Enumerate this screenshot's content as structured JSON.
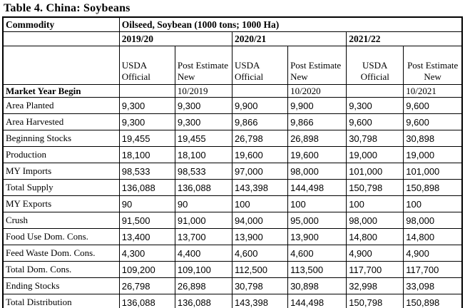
{
  "title": "Table 4. China:  Soybeans",
  "table": {
    "commodity_label": "Commodity",
    "commodity_value": "Oilseed, Soybean (1000 tons; 1000 Ha)",
    "subheader_usda": "USDA Official",
    "subheader_post": "Post Estimate New",
    "market_year_begin_label": "Market Year Begin",
    "year_groups": [
      {
        "year": "2019/20",
        "market_year_begin": "10/2019"
      },
      {
        "year": "2020/21",
        "market_year_begin": "10/2020"
      },
      {
        "year": "2021/22",
        "market_year_begin": "10/2021"
      }
    ],
    "rows": [
      {
        "label": "Area Planted",
        "values": [
          "9,300",
          "9,300",
          "9,900",
          "9,900",
          "9,300",
          "9,600"
        ]
      },
      {
        "label": "Area Harvested",
        "values": [
          "9,300",
          "9,300",
          "9,866",
          "9,866",
          "9,600",
          "9,600"
        ]
      },
      {
        "label": "Beginning Stocks",
        "values": [
          "19,455",
          "19,455",
          "26,798",
          "26,898",
          "30,798",
          "30,898"
        ]
      },
      {
        "label": "Production",
        "values": [
          "18,100",
          "18,100",
          "19,600",
          "19,600",
          "19,000",
          "19,000"
        ]
      },
      {
        "label": "MY Imports",
        "values": [
          "98,533",
          "98,533",
          "97,000",
          "98,000",
          "101,000",
          "101,000"
        ]
      },
      {
        "label": "Total Supply",
        "values": [
          "136,088",
          "136,088",
          "143,398",
          "144,498",
          "150,798",
          "150,898"
        ]
      },
      {
        "label": "MY Exports",
        "values": [
          "90",
          "90",
          "100",
          "100",
          "100",
          "100"
        ]
      },
      {
        "label": "Crush",
        "values": [
          "91,500",
          "91,000",
          "94,000",
          "95,000",
          "98,000",
          "98,000"
        ]
      },
      {
        "label": "Food Use Dom. Cons.",
        "values": [
          "13,400",
          "13,700",
          "13,900",
          "13,900",
          "14,800",
          "14,800"
        ]
      },
      {
        "label": "Feed Waste Dom. Cons.",
        "values": [
          "4,300",
          "4,400",
          "4,600",
          "4,600",
          "4,900",
          "4,900"
        ]
      },
      {
        "label": "Total Dom. Cons.",
        "values": [
          "109,200",
          "109,100",
          "112,500",
          "113,500",
          "117,700",
          "117,700"
        ]
      },
      {
        "label": "Ending Stocks",
        "values": [
          "26,798",
          "26,898",
          "30,798",
          "30,898",
          "32,998",
          "33,098"
        ]
      },
      {
        "label": "Total Distribution",
        "values": [
          "136,088",
          "136,088",
          "143,398",
          "144,498",
          "150,798",
          "150,898"
        ]
      }
    ],
    "colors": {
      "number_text": "#1F3864",
      "border": "#000000",
      "background": "#FFFFFF"
    }
  }
}
